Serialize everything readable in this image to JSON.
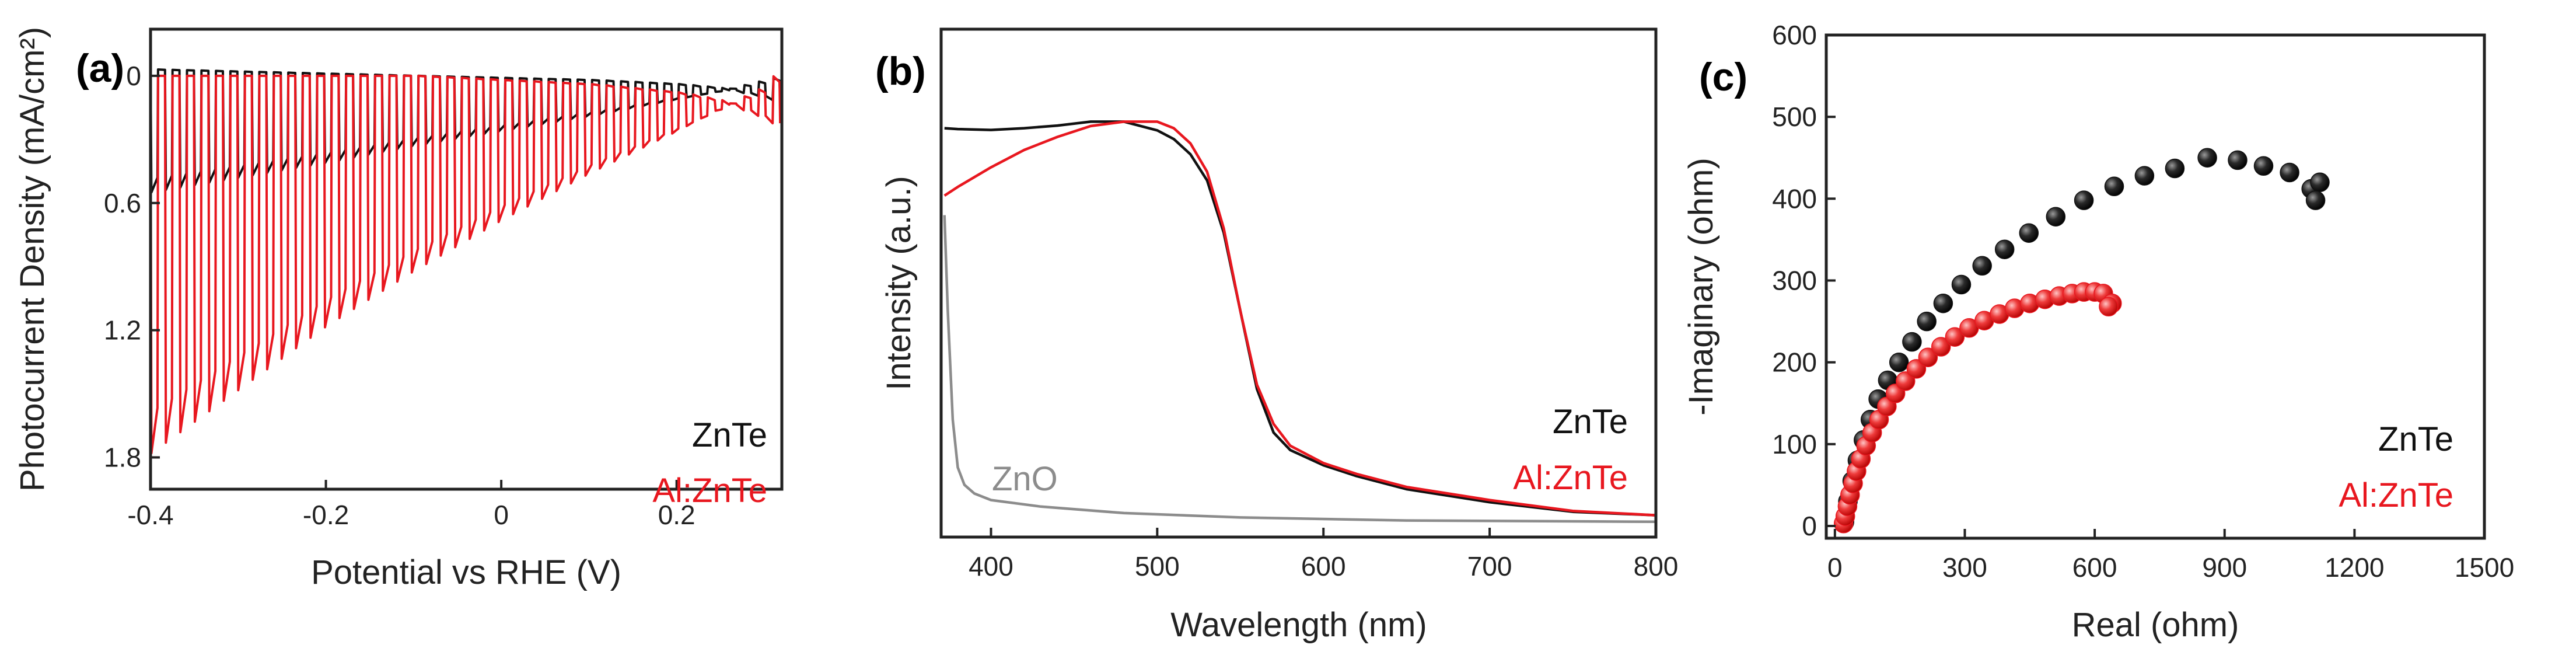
{
  "colors": {
    "black_series": "#111111",
    "red_series": "#e8171f",
    "gray_series": "#8c8c8c",
    "axes": "#222222"
  },
  "chart_data": [
    {
      "id": "a",
      "panel_label": "(a)",
      "type": "line",
      "title": "",
      "xlabel": "Potential vs RHE (V)",
      "ylabel": "Photocurrent Density (mA/cm²)",
      "xlim": [
        -0.4,
        0.32
      ],
      "ylim": [
        -1.95,
        0.22
      ],
      "y_direction": "inverted",
      "xticks": [
        -0.4,
        -0.2,
        0,
        0.2
      ],
      "xtick_labels": [
        "-0.4",
        "-0.2",
        "0",
        "0.2"
      ],
      "yticks": [
        0,
        -0.6,
        -1.2,
        -1.8
      ],
      "ytick_labels": [
        "0",
        "0.6",
        "1.2",
        "1.8"
      ],
      "chopped_light": true,
      "chop_period_V": 0.0165,
      "legend": [
        "ZnTe",
        "Al:ZnTe"
      ],
      "legend_position": "bottom-right",
      "series": [
        {
          "name": "ZnTe",
          "color": "#111111",
          "x": [
            -0.4,
            -0.3,
            -0.2,
            -0.1,
            0.0,
            0.1,
            0.2,
            0.25,
            0.3,
            0.32
          ],
          "dark": [
            0.03,
            0.02,
            0.01,
            0.0,
            -0.01,
            -0.02,
            -0.04,
            -0.06,
            -0.1,
            -0.13
          ],
          "light": [
            -0.55,
            -0.48,
            -0.41,
            -0.33,
            -0.26,
            -0.19,
            -0.11,
            -0.07,
            -0.02,
            0.0
          ]
        },
        {
          "name": "Al:ZnTe",
          "color": "#e8171f",
          "x": [
            -0.4,
            -0.3,
            -0.2,
            -0.1,
            0.0,
            0.1,
            0.2,
            0.25,
            0.3,
            0.32
          ],
          "dark": [
            0.0,
            0.0,
            0.0,
            0.0,
            -0.02,
            -0.04,
            -0.08,
            -0.12,
            -0.2,
            -0.25
          ],
          "light": [
            -1.78,
            -1.48,
            -1.18,
            -0.92,
            -0.68,
            -0.46,
            -0.26,
            -0.15,
            -0.05,
            0.05
          ]
        }
      ]
    },
    {
      "id": "b",
      "panel_label": "(b)",
      "type": "line",
      "title": "",
      "xlabel": "Wavelength (nm)",
      "ylabel": "Intensity (a.u.)",
      "xlim": [
        370,
        800
      ],
      "ylim": [
        0,
        1
      ],
      "xticks": [
        400,
        500,
        600,
        700,
        800
      ],
      "xtick_labels": [
        "400",
        "500",
        "600",
        "700",
        "800"
      ],
      "yticks": [],
      "legend": [
        "ZnTe",
        "Al:ZnTe"
      ],
      "legend_position": "right",
      "series": [
        {
          "name": "ZnTe",
          "color": "#111111",
          "x": [
            372,
            380,
            400,
            420,
            440,
            460,
            480,
            500,
            510,
            520,
            530,
            540,
            550,
            560,
            570,
            580,
            600,
            620,
            650,
            700,
            750,
            800
          ],
          "y": [
            0.92,
            0.918,
            0.916,
            0.92,
            0.926,
            0.935,
            0.935,
            0.915,
            0.895,
            0.86,
            0.8,
            0.68,
            0.5,
            0.32,
            0.22,
            0.18,
            0.145,
            0.12,
            0.09,
            0.06,
            0.038,
            0.03
          ]
        },
        {
          "name": "Al:ZnTe",
          "color": "#e8171f",
          "x": [
            372,
            380,
            400,
            420,
            440,
            460,
            480,
            500,
            510,
            520,
            530,
            540,
            550,
            560,
            570,
            580,
            600,
            620,
            650,
            700,
            750,
            800
          ],
          "y": [
            0.765,
            0.785,
            0.83,
            0.87,
            0.9,
            0.925,
            0.935,
            0.935,
            0.92,
            0.885,
            0.82,
            0.69,
            0.5,
            0.33,
            0.24,
            0.19,
            0.15,
            0.125,
            0.095,
            0.065,
            0.04,
            0.03
          ]
        },
        {
          "name": "ZnO",
          "color": "#8c8c8c",
          "label_visible": true,
          "x": [
            372,
            374,
            377,
            380,
            384,
            390,
            400,
            430,
            480,
            550,
            650,
            800
          ],
          "y": [
            0.72,
            0.5,
            0.25,
            0.14,
            0.1,
            0.08,
            0.065,
            0.05,
            0.035,
            0.025,
            0.018,
            0.015
          ]
        }
      ]
    },
    {
      "id": "c",
      "panel_label": "(c)",
      "type": "scatter",
      "title": "",
      "xlabel": "Real (ohm)",
      "ylabel": "-Imaginary (ohm)",
      "xlim": [
        -20,
        1500
      ],
      "ylim": [
        -15,
        600
      ],
      "xticks": [
        0,
        300,
        600,
        900,
        1200,
        1500
      ],
      "xtick_labels": [
        "0",
        "300",
        "600",
        "900",
        "1200",
        "1500"
      ],
      "yticks": [
        0,
        100,
        200,
        300,
        400,
        500,
        600
      ],
      "ytick_labels": [
        "0",
        "100",
        "200",
        "300",
        "400",
        "500",
        "600"
      ],
      "legend": [
        "ZnTe",
        "Al:ZnTe"
      ],
      "legend_position": "bottom-right",
      "series": [
        {
          "name": "ZnTe",
          "color": "#111111",
          "x": [
            22,
            30,
            40,
            52,
            66,
            82,
            100,
            122,
            148,
            178,
            212,
            250,
            292,
            340,
            392,
            448,
            510,
            575,
            645,
            715,
            785,
            860,
            930,
            990,
            1050,
            1100,
            1120,
            1110
          ],
          "y": [
            5,
            30,
            55,
            80,
            105,
            130,
            155,
            178,
            200,
            225,
            250,
            272,
            295,
            318,
            338,
            358,
            378,
            398,
            415,
            428,
            437,
            450,
            447,
            440,
            432,
            412,
            420,
            398
          ]
        },
        {
          "name": "Al:ZnTe",
          "color": "#e8171f",
          "x": [
            20,
            24,
            29,
            35,
            42,
            50,
            60,
            72,
            86,
            102,
            120,
            140,
            163,
            188,
            215,
            245,
            277,
            310,
            345,
            380,
            415,
            450,
            485,
            518,
            548,
            575,
            600,
            620,
            640,
            632
          ],
          "y": [
            3,
            12,
            24,
            38,
            52,
            67,
            82,
            98,
            114,
            130,
            146,
            162,
            177,
            192,
            206,
            219,
            231,
            242,
            251,
            259,
            266,
            272,
            277,
            281,
            284,
            286,
            286,
            284,
            272,
            268
          ]
        }
      ]
    }
  ]
}
